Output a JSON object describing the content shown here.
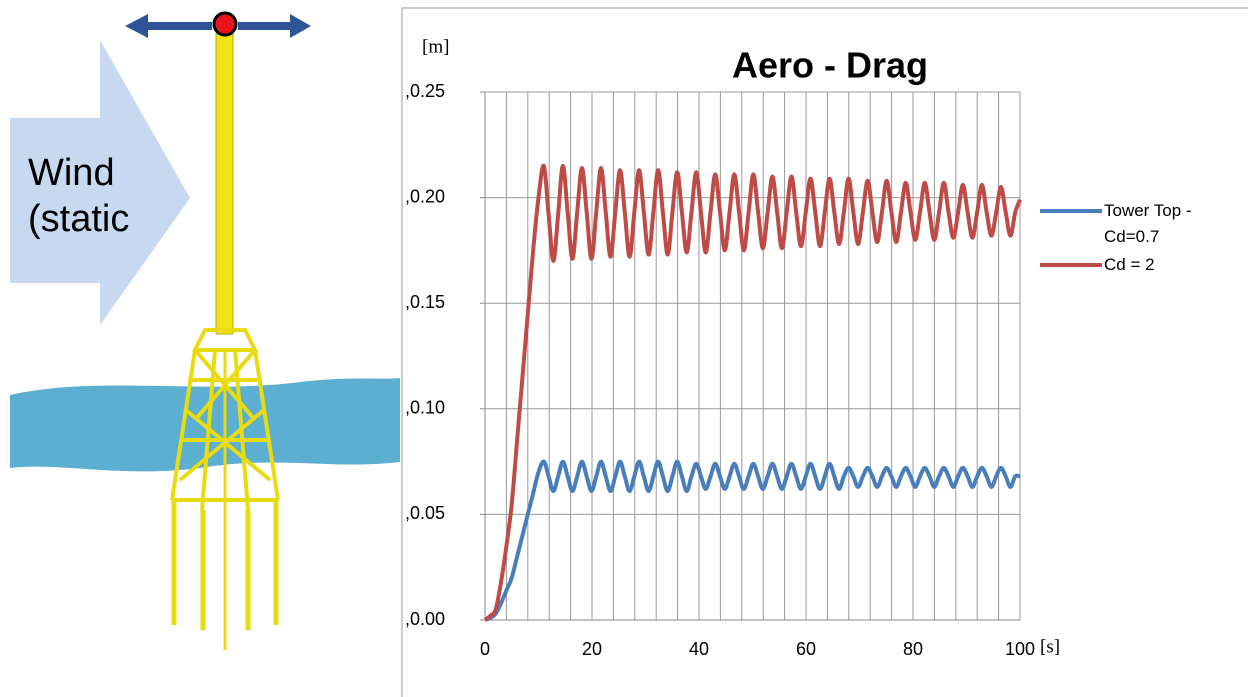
{
  "illustration": {
    "wind_label": "Wind (static"
  },
  "chart_data": {
    "type": "line",
    "title": "Aero - Drag",
    "y_label": "[m]",
    "x_label": "[s]",
    "x": [
      0,
      1,
      2,
      3,
      4,
      5,
      6,
      7,
      8,
      9,
      10,
      11,
      11.89,
      12.78,
      13.67,
      14.56,
      15.45,
      16.34,
      17.23,
      18.12,
      19.01,
      19.9,
      20.79,
      21.68,
      22.57,
      23.46,
      24.35,
      25.24,
      26.13,
      27.02,
      27.91,
      28.8,
      29.69,
      30.58,
      31.47,
      32.36,
      33.25,
      34.14,
      35.03,
      35.92,
      36.81,
      37.7,
      38.59,
      39.48,
      40.37,
      41.26,
      42.15,
      43.04,
      43.93,
      44.82,
      45.71,
      46.6,
      47.49,
      48.38,
      49.27,
      50.16,
      51.05,
      51.94,
      52.83,
      53.72,
      54.61,
      55.5,
      56.39,
      57.28,
      58.17,
      59.06,
      59.95,
      60.84,
      61.73,
      62.62,
      63.51,
      64.4,
      65.29,
      66.18,
      67.07,
      67.96,
      68.85,
      69.74,
      70.63,
      71.52,
      72.41,
      73.3,
      74.19,
      75.08,
      75.97,
      76.86,
      77.75,
      78.64,
      79.53,
      80.42,
      81.31,
      82.2,
      83.09,
      83.98,
      84.87,
      85.76,
      86.65,
      87.54,
      88.43,
      89.32,
      90.21,
      91.1,
      91.99,
      92.88,
      93.77,
      94.66,
      95.55,
      96.44,
      97.33,
      98.22,
      99.11,
      100
    ],
    "series": [
      {
        "name": "Tower Top - Cd=0.7",
        "color": "#4a7ebb",
        "values": [
          0,
          0.001,
          0.003,
          0.008,
          0.014,
          0.02,
          0.03,
          0.04,
          0.05,
          0.06,
          0.07,
          0.075,
          0.068,
          0.061,
          0.068,
          0.075,
          0.068,
          0.061,
          0.068,
          0.075,
          0.068,
          0.061,
          0.068,
          0.075,
          0.068,
          0.061,
          0.068,
          0.075,
          0.068,
          0.061,
          0.068,
          0.075,
          0.068,
          0.061,
          0.068,
          0.075,
          0.068,
          0.061,
          0.068,
          0.075,
          0.068,
          0.061,
          0.068,
          0.074,
          0.068,
          0.062,
          0.068,
          0.074,
          0.068,
          0.062,
          0.068,
          0.074,
          0.068,
          0.062,
          0.068,
          0.074,
          0.068,
          0.062,
          0.068,
          0.074,
          0.068,
          0.062,
          0.068,
          0.074,
          0.068,
          0.062,
          0.068,
          0.074,
          0.068,
          0.062,
          0.068,
          0.074,
          0.068,
          0.062,
          0.068,
          0.072,
          0.068,
          0.063,
          0.068,
          0.072,
          0.068,
          0.063,
          0.068,
          0.072,
          0.068,
          0.063,
          0.068,
          0.072,
          0.068,
          0.063,
          0.068,
          0.072,
          0.068,
          0.063,
          0.068,
          0.072,
          0.068,
          0.063,
          0.068,
          0.072,
          0.068,
          0.063,
          0.068,
          0.072,
          0.068,
          0.063,
          0.068,
          0.072,
          0.068,
          0.063,
          0.068,
          0.068
        ]
      },
      {
        "name": "Cd = 2",
        "color": "#be4b48",
        "values": [
          0,
          0.002,
          0.005,
          0.018,
          0.035,
          0.055,
          0.085,
          0.115,
          0.145,
          0.175,
          0.2,
          0.215,
          0.192,
          0.17,
          0.192,
          0.215,
          0.193,
          0.171,
          0.193,
          0.214,
          0.193,
          0.171,
          0.193,
          0.214,
          0.193,
          0.172,
          0.193,
          0.213,
          0.193,
          0.172,
          0.193,
          0.213,
          0.193,
          0.173,
          0.193,
          0.213,
          0.193,
          0.173,
          0.193,
          0.212,
          0.193,
          0.174,
          0.193,
          0.212,
          0.193,
          0.174,
          0.193,
          0.211,
          0.193,
          0.175,
          0.193,
          0.211,
          0.193,
          0.175,
          0.193,
          0.211,
          0.193,
          0.176,
          0.193,
          0.21,
          0.193,
          0.176,
          0.193,
          0.21,
          0.193,
          0.177,
          0.193,
          0.209,
          0.193,
          0.177,
          0.193,
          0.209,
          0.193,
          0.178,
          0.193,
          0.209,
          0.193,
          0.178,
          0.193,
          0.208,
          0.193,
          0.179,
          0.193,
          0.208,
          0.193,
          0.179,
          0.193,
          0.207,
          0.193,
          0.18,
          0.193,
          0.207,
          0.193,
          0.18,
          0.193,
          0.207,
          0.193,
          0.181,
          0.193,
          0.206,
          0.193,
          0.181,
          0.193,
          0.206,
          0.193,
          0.182,
          0.193,
          0.205,
          0.193,
          0.182,
          0.193,
          0.199
        ]
      }
    ],
    "xlim": [
      0,
      100
    ],
    "xticks": [
      0,
      20,
      40,
      60,
      80,
      100
    ],
    "ylim": [
      0,
      0.25
    ],
    "yticks": [
      {
        "value": 0,
        "label": ",0.00"
      },
      {
        "value": 0.05,
        "label": ",0.05"
      },
      {
        "value": 0.1,
        "label": ",0.10"
      },
      {
        "value": 0.15,
        "label": ",0.15"
      },
      {
        "value": 0.2,
        "label": ",0.20"
      },
      {
        "value": 0.25,
        "label": ",0.25"
      }
    ],
    "grid": true,
    "legend": "right"
  }
}
